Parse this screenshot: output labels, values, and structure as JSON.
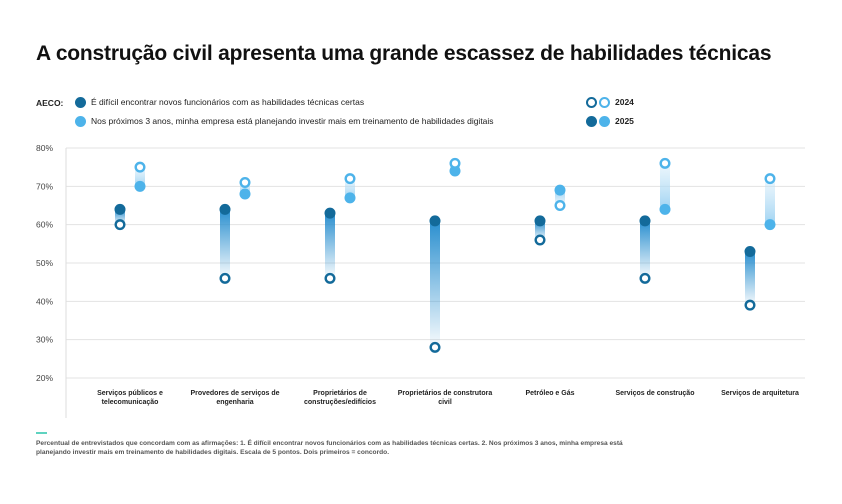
{
  "title": "A construção civil apresenta uma grande escassez de habilidades técnicas",
  "legend": {
    "group_label": "AECO:",
    "q1": "É difícil encontrar novos funcionários com as habilidades técnicas certas",
    "q2": "Nos próximos 3 anos, minha empresa está planejando investir mais em treinamento de habilidades digitais",
    "year_2024": "2024",
    "year_2025": "2025"
  },
  "colors": {
    "q1": "#136a9a",
    "q2": "#4db3ea",
    "q1_bar": "#2a8fcf",
    "grid": "#e3e3e3"
  },
  "footnote": "Percentual de entrevistados que concordam com as afirmações: 1. É difícil encontrar novos funcionários com as habilidades técnicas certas. 2. Nos próximos 3 anos, minha empresa está planejando investir mais em treinamento de habilidades digitais. Escala de 5 pontos. Dois primeiros = concordo.",
  "chart_data": {
    "type": "dumbbell",
    "ylim": [
      20,
      80
    ],
    "yticks": [
      "20%",
      "30%",
      "40%",
      "50%",
      "60%",
      "70%",
      "80%"
    ],
    "grid": true,
    "categories": [
      "Serviços públicos e telecomunicação",
      "Provedores de serviços de engenharia",
      "Proprietários de construções/edifícios",
      "Proprietários de construtora civil",
      "Petróleo e Gás",
      "Serviços de construção",
      "Serviços de arquitetura"
    ],
    "series": [
      {
        "name": "É difícil encontrar novos funcionários com as habilidades técnicas certas",
        "2024": [
          60,
          46,
          46,
          28,
          56,
          46,
          39
        ],
        "2025": [
          64,
          64,
          63,
          61,
          61,
          61,
          53
        ]
      },
      {
        "name": "Nos próximos 3 anos, minha empresa está planejando investir mais em treinamento de habilidades digitais",
        "2024": [
          75,
          71,
          72,
          76,
          65,
          76,
          72
        ],
        "2025": [
          70,
          68,
          67,
          74,
          69,
          64,
          60
        ]
      }
    ]
  }
}
